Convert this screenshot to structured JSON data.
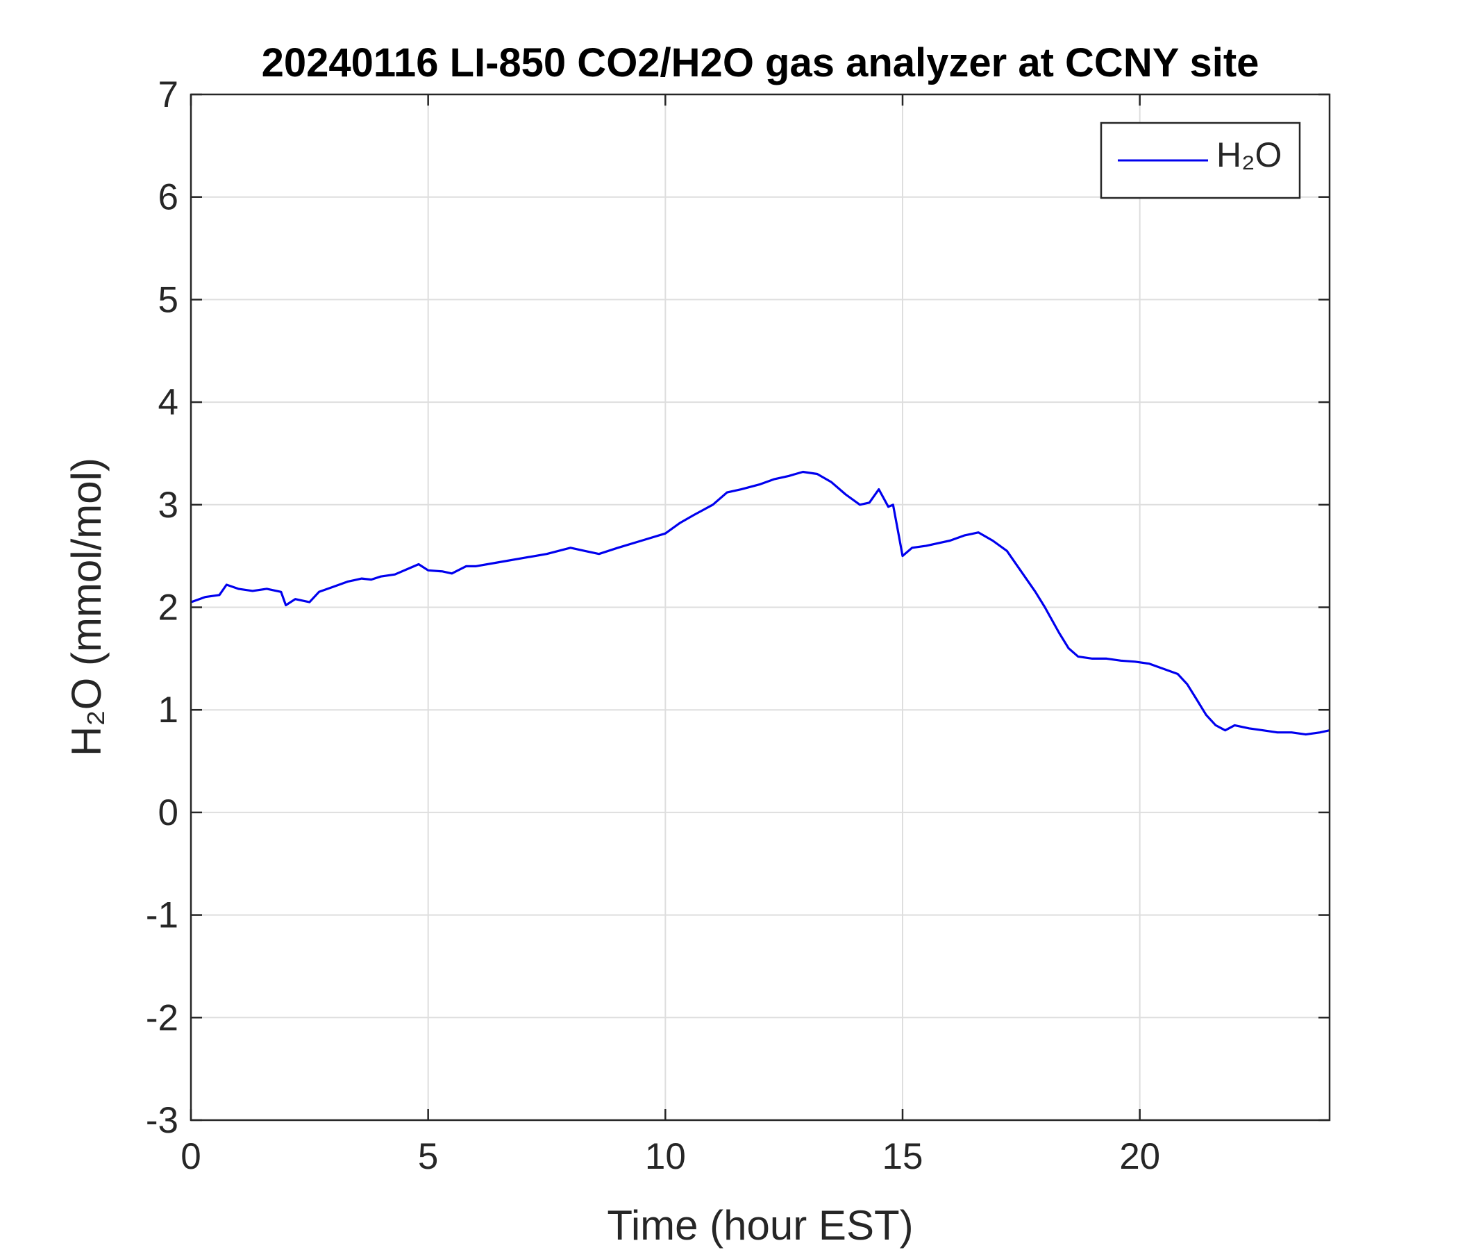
{
  "chart_data": {
    "type": "line",
    "title": "20240116 LI-850 CO2/H2O gas analyzer at CCNY site",
    "xlabel": "Time (hour EST)",
    "ylabel": "H₂O (mmol/mol)",
    "xlim": [
      0,
      24
    ],
    "ylim": [
      -3,
      7
    ],
    "xticks": [
      0,
      5,
      10,
      15,
      20
    ],
    "yticks": [
      -3,
      -2,
      -1,
      0,
      1,
      2,
      3,
      4,
      5,
      6,
      7
    ],
    "grid": true,
    "legend_position": "top-right",
    "series": [
      {
        "name": "H₂O",
        "color": "#0000ee",
        "x": [
          0,
          0.3,
          0.6,
          0.75,
          1.0,
          1.3,
          1.6,
          1.9,
          2.0,
          2.2,
          2.5,
          2.7,
          3.0,
          3.3,
          3.6,
          3.8,
          4.0,
          4.3,
          4.6,
          4.8,
          5.0,
          5.3,
          5.5,
          5.8,
          6.0,
          6.5,
          7.0,
          7.5,
          8.0,
          8.3,
          8.6,
          9.0,
          9.5,
          10.0,
          10.3,
          10.6,
          11.0,
          11.3,
          11.6,
          12.0,
          12.3,
          12.6,
          12.9,
          13.2,
          13.5,
          13.8,
          14.1,
          14.3,
          14.5,
          14.7,
          14.8,
          14.9,
          15.0,
          15.2,
          15.5,
          15.8,
          16.0,
          16.3,
          16.6,
          16.9,
          17.2,
          17.5,
          17.8,
          18.0,
          18.3,
          18.5,
          18.7,
          19.0,
          19.3,
          19.6,
          19.9,
          20.2,
          20.5,
          20.8,
          21.0,
          21.2,
          21.4,
          21.6,
          21.8,
          22.0,
          22.3,
          22.6,
          22.9,
          23.2,
          23.5,
          23.8,
          24.0
        ],
        "y": [
          2.05,
          2.1,
          2.12,
          2.22,
          2.18,
          2.16,
          2.18,
          2.15,
          2.02,
          2.08,
          2.05,
          2.15,
          2.2,
          2.25,
          2.28,
          2.27,
          2.3,
          2.32,
          2.38,
          2.42,
          2.36,
          2.35,
          2.33,
          2.4,
          2.4,
          2.44,
          2.48,
          2.52,
          2.58,
          2.55,
          2.52,
          2.58,
          2.65,
          2.72,
          2.82,
          2.9,
          3.0,
          3.12,
          3.15,
          3.2,
          3.25,
          3.28,
          3.32,
          3.3,
          3.22,
          3.1,
          3.0,
          3.02,
          3.15,
          2.98,
          3.0,
          2.75,
          2.5,
          2.58,
          2.6,
          2.63,
          2.65,
          2.7,
          2.73,
          2.65,
          2.55,
          2.35,
          2.15,
          2.0,
          1.75,
          1.6,
          1.52,
          1.5,
          1.5,
          1.48,
          1.47,
          1.45,
          1.4,
          1.35,
          1.25,
          1.1,
          0.95,
          0.85,
          0.8,
          0.85,
          0.82,
          0.8,
          0.78,
          0.78,
          0.76,
          0.78,
          0.8
        ]
      }
    ]
  }
}
